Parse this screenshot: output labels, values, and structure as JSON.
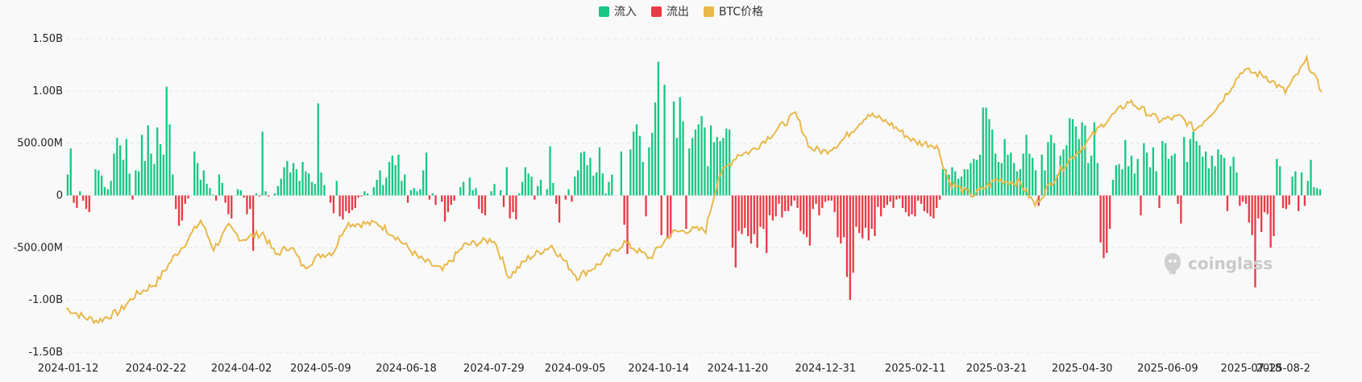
{
  "legend": [
    {
      "label": "流入",
      "color": "#16c784"
    },
    {
      "label": "流出",
      "color": "#ea3943"
    },
    {
      "label": "BTC价格",
      "color": "#e8b84a"
    }
  ],
  "watermark": "coinglass",
  "chart_data": {
    "type": "bar",
    "series": [
      {
        "name": "流入",
        "color": "#16c784"
      },
      {
        "name": "流出",
        "color": "#ea3943"
      },
      {
        "name": "BTC价格",
        "type": "line",
        "color": "#e8b84a"
      }
    ],
    "y_ticks": [
      "1.50B",
      "1.00B",
      "500.00M",
      "0",
      "-500.00M",
      "-1.00B",
      "-1.50B"
    ],
    "ylim": [
      -1500,
      1500
    ],
    "y_unit": "M",
    "x_ticks": [
      "2024-01-12",
      "2024-02-22",
      "2024-04-02",
      "2024-05-09",
      "2024-06-18",
      "2024-07-29",
      "2024-09-05",
      "2024-10-14",
      "2024-11-20",
      "2024-12-31",
      "2025-02-11",
      "2025-03-21",
      "2025-04-30",
      "2025-06-09",
      "2025-07-18",
      "2025-08-2"
    ],
    "x_range": [
      "2024-01-11",
      "2025-08-20"
    ],
    "flows": [
      200,
      450,
      -70,
      -120,
      40,
      -50,
      -130,
      -160,
      0,
      250,
      240,
      190,
      80,
      60,
      140,
      400,
      550,
      480,
      340,
      540,
      210,
      -40,
      240,
      230,
      580,
      330,
      670,
      400,
      300,
      650,
      490,
      390,
      1040,
      680,
      200,
      -130,
      -290,
      -240,
      -80,
      -30,
      0,
      420,
      310,
      150,
      240,
      110,
      70,
      10,
      -50,
      200,
      120,
      -70,
      -180,
      -220,
      0,
      60,
      50,
      -20,
      -180,
      -130,
      -530,
      20,
      -10,
      610,
      40,
      -10,
      0,
      20,
      90,
      160,
      270,
      330,
      220,
      310,
      250,
      140,
      320,
      230,
      210,
      130,
      110,
      880,
      220,
      100,
      0,
      -70,
      -170,
      140,
      -200,
      -230,
      -150,
      -170,
      -140,
      -120,
      -20,
      -10,
      40,
      20,
      0,
      80,
      150,
      240,
      100,
      170,
      320,
      380,
      290,
      390,
      140,
      200,
      -70,
      50,
      70,
      40,
      60,
      240,
      410,
      -40,
      20,
      -90,
      0,
      -60,
      -250,
      -160,
      -90,
      -50,
      0,
      80,
      130,
      0,
      170,
      50,
      70,
      -130,
      -170,
      -190,
      0,
      40,
      110,
      0,
      50,
      -110,
      270,
      -220,
      -160,
      -230,
      20,
      130,
      270,
      210,
      180,
      -40,
      90,
      150,
      0,
      60,
      470,
      120,
      -80,
      -260,
      0,
      -40,
      60,
      -60,
      180,
      240,
      410,
      420,
      290,
      360,
      190,
      220,
      460,
      210,
      20,
      130,
      200,
      0,
      0,
      420,
      -280,
      -560,
      440,
      610,
      680,
      570,
      320,
      -200,
      460,
      600,
      890,
      1280,
      -380,
      1060,
      -410,
      -400,
      900,
      550,
      940,
      710,
      -320,
      450,
      550,
      630,
      680,
      760,
      650,
      280,
      670,
      510,
      560,
      520,
      550,
      640,
      630,
      -500,
      -690,
      -340,
      -370,
      -310,
      -390,
      -460,
      -370,
      -500,
      -300,
      -320,
      -550,
      -190,
      -240,
      -200,
      -80,
      -210,
      -150,
      -150,
      -100,
      -50,
      -120,
      -340,
      -370,
      -400,
      -480,
      -130,
      -80,
      -190,
      -120,
      -60,
      -50,
      -50,
      -160,
      -400,
      -460,
      -400,
      -780,
      -1000,
      -740,
      -300,
      -360,
      -410,
      -310,
      -430,
      -320,
      -390,
      -110,
      -200,
      -120,
      -90,
      -60,
      -120,
      -40,
      -30,
      -120,
      -160,
      -200,
      -180,
      -200,
      -50,
      -80,
      -150,
      -170,
      -200,
      -220,
      -120,
      -40,
      250,
      250,
      200,
      270,
      230,
      160,
      180,
      250,
      250,
      310,
      350,
      340,
      390,
      840,
      840,
      730,
      630,
      400,
      320,
      310,
      540,
      390,
      410,
      310,
      230,
      250,
      400,
      580,
      400,
      360,
      240,
      -100,
      390,
      240,
      510,
      580,
      500,
      200,
      380,
      440,
      480,
      740,
      730,
      660,
      540,
      700,
      670,
      310,
      380,
      700,
      310,
      -450,
      -600,
      -550,
      -320,
      150,
      290,
      300,
      250,
      530,
      280,
      380,
      210,
      350,
      -190,
      500,
      410,
      270,
      460,
      230,
      -120,
      520,
      500,
      350,
      380,
      400,
      -80,
      -270,
      560,
      320,
      540,
      610,
      520,
      480,
      370,
      420,
      260,
      380,
      280,
      440,
      390,
      360,
      -150,
      280,
      370,
      220,
      -100,
      -60,
      -80,
      -260,
      -380,
      -880,
      -220,
      -350,
      -160,
      -180,
      -500,
      -390,
      350,
      280,
      -120,
      -130,
      -90,
      180,
      230,
      -150,
      220,
      -100,
      140,
      340,
      80,
      70,
      60
    ]
  }
}
